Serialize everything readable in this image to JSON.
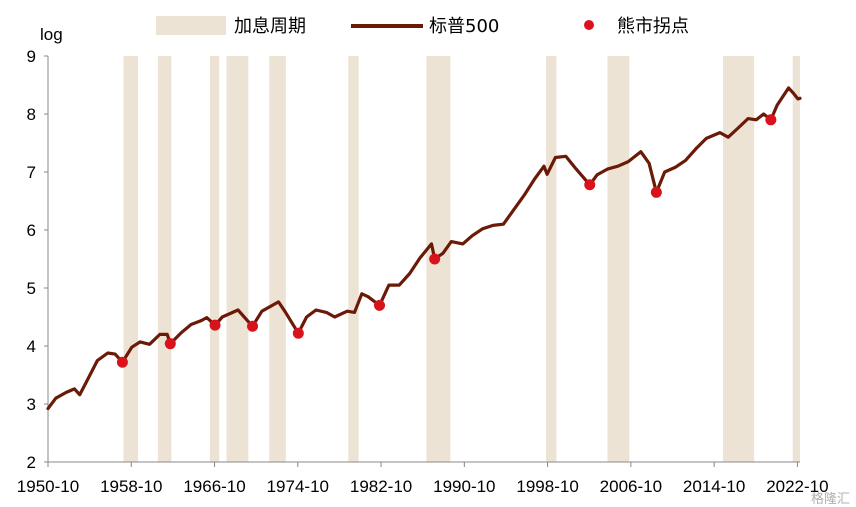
{
  "chart_data": {
    "type": "line",
    "ylabel_unit": "log",
    "ylim": [
      2,
      9
    ],
    "y_ticks": [
      "2",
      "3",
      "4",
      "5",
      "6",
      "7",
      "8",
      "9"
    ],
    "xlim": [
      1950.75,
      2023.0
    ],
    "x_tick_labels": [
      "1950-10",
      "1958-10",
      "1966-10",
      "1974-10",
      "1982-10",
      "1990-10",
      "1998-10",
      "2006-10",
      "2014-10",
      "2022-10"
    ],
    "x_tick_values": [
      1950.75,
      1958.75,
      1966.75,
      1974.75,
      1982.75,
      1990.75,
      1998.75,
      2006.75,
      2014.75,
      2022.75
    ],
    "grid": false,
    "legend_position": "top",
    "legend": [
      {
        "name": "加息周期",
        "type": "band",
        "color": "#ede3d4"
      },
      {
        "name": "标普500",
        "type": "line",
        "color": "#6b1a08"
      },
      {
        "name": "熊市拐点",
        "type": "marker",
        "color": "#d9121c"
      }
    ],
    "hike_periods": [
      [
        1958.0,
        1959.4
      ],
      [
        1961.3,
        1962.6
      ],
      [
        1966.3,
        1967.2
      ],
      [
        1967.9,
        1970.0
      ],
      [
        1972.0,
        1973.6
      ],
      [
        1979.6,
        1980.6
      ],
      [
        1987.1,
        1989.4
      ],
      [
        1998.6,
        1999.6
      ],
      [
        2004.5,
        2006.6
      ],
      [
        2015.6,
        2018.6
      ],
      [
        2022.3,
        2023.0
      ]
    ],
    "series": [
      {
        "name": "标普500",
        "color": "#6b1a08",
        "points": [
          [
            1950.75,
            2.92
          ],
          [
            1951.5,
            3.1
          ],
          [
            1952.5,
            3.2
          ],
          [
            1953.3,
            3.26
          ],
          [
            1953.8,
            3.16
          ],
          [
            1954.5,
            3.4
          ],
          [
            1955.5,
            3.75
          ],
          [
            1956.5,
            3.88
          ],
          [
            1957.2,
            3.86
          ],
          [
            1957.9,
            3.72
          ],
          [
            1958.8,
            3.98
          ],
          [
            1959.6,
            4.07
          ],
          [
            1960.5,
            4.03
          ],
          [
            1961.5,
            4.2
          ],
          [
            1962.2,
            4.2
          ],
          [
            1962.5,
            4.04
          ],
          [
            1963.5,
            4.22
          ],
          [
            1964.5,
            4.37
          ],
          [
            1965.5,
            4.44
          ],
          [
            1966.0,
            4.49
          ],
          [
            1966.8,
            4.36
          ],
          [
            1967.5,
            4.5
          ],
          [
            1968.5,
            4.58
          ],
          [
            1969.0,
            4.62
          ],
          [
            1970.4,
            4.34
          ],
          [
            1971.3,
            4.6
          ],
          [
            1972.9,
            4.76
          ],
          [
            1973.5,
            4.6
          ],
          [
            1974.8,
            4.22
          ],
          [
            1975.6,
            4.5
          ],
          [
            1976.5,
            4.62
          ],
          [
            1977.5,
            4.58
          ],
          [
            1978.3,
            4.5
          ],
          [
            1979.5,
            4.6
          ],
          [
            1980.2,
            4.58
          ],
          [
            1980.9,
            4.9
          ],
          [
            1981.5,
            4.85
          ],
          [
            1982.6,
            4.7
          ],
          [
            1983.5,
            5.05
          ],
          [
            1984.5,
            5.05
          ],
          [
            1985.5,
            5.25
          ],
          [
            1986.5,
            5.52
          ],
          [
            1987.6,
            5.76
          ],
          [
            1987.9,
            5.5
          ],
          [
            1988.7,
            5.6
          ],
          [
            1989.5,
            5.8
          ],
          [
            1990.6,
            5.76
          ],
          [
            1991.5,
            5.9
          ],
          [
            1992.5,
            6.02
          ],
          [
            1993.5,
            6.08
          ],
          [
            1994.5,
            6.1
          ],
          [
            1995.5,
            6.35
          ],
          [
            1996.5,
            6.6
          ],
          [
            1997.5,
            6.88
          ],
          [
            1998.4,
            7.1
          ],
          [
            1998.7,
            6.96
          ],
          [
            1999.5,
            7.25
          ],
          [
            2000.5,
            7.27
          ],
          [
            2001.5,
            7.05
          ],
          [
            2002.8,
            6.78
          ],
          [
            2003.5,
            6.95
          ],
          [
            2004.5,
            7.05
          ],
          [
            2005.5,
            7.1
          ],
          [
            2006.5,
            7.18
          ],
          [
            2007.7,
            7.35
          ],
          [
            2008.5,
            7.15
          ],
          [
            2009.2,
            6.65
          ],
          [
            2010.0,
            7.0
          ],
          [
            2011.0,
            7.08
          ],
          [
            2012.0,
            7.2
          ],
          [
            2013.0,
            7.4
          ],
          [
            2014.0,
            7.58
          ],
          [
            2015.3,
            7.68
          ],
          [
            2016.1,
            7.6
          ],
          [
            2017.0,
            7.75
          ],
          [
            2018.0,
            7.92
          ],
          [
            2018.8,
            7.9
          ],
          [
            2019.5,
            8.0
          ],
          [
            2020.2,
            7.9
          ],
          [
            2020.8,
            8.15
          ],
          [
            2021.9,
            8.45
          ],
          [
            2022.4,
            8.35
          ],
          [
            2022.8,
            8.26
          ],
          [
            2023.0,
            8.27
          ]
        ]
      }
    ],
    "bear_market_points": [
      [
        1957.9,
        3.72
      ],
      [
        1962.5,
        4.04
      ],
      [
        1966.8,
        4.36
      ],
      [
        1970.4,
        4.34
      ],
      [
        1974.8,
        4.22
      ],
      [
        1982.6,
        4.7
      ],
      [
        1987.9,
        5.5
      ],
      [
        2002.8,
        6.78
      ],
      [
        2009.2,
        6.65
      ],
      [
        2020.2,
        7.9
      ]
    ],
    "watermark": "格隆汇"
  }
}
